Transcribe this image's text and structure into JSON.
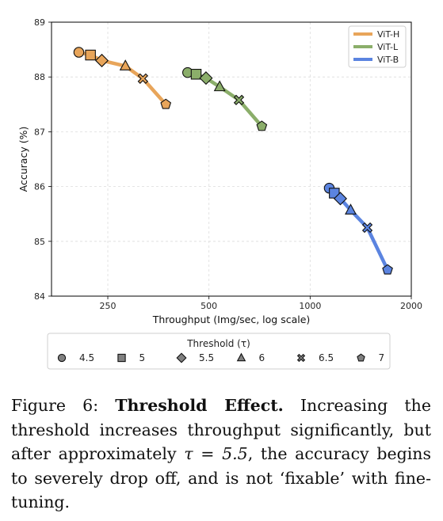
{
  "chart_data": {
    "type": "scatter",
    "xlabel": "Throughput (Img/sec, log scale)",
    "ylabel": "Accuracy (%)",
    "xscale": "log",
    "xlim": [
      170,
      2000
    ],
    "ylim": [
      84,
      89
    ],
    "xticks": [
      250,
      500,
      1000,
      2000
    ],
    "yticks": [
      84,
      85,
      86,
      87,
      88,
      89
    ],
    "grid": true,
    "legend_position": "top-right",
    "series": [
      {
        "name": "ViT-H",
        "color": "#E8A55A",
        "x": [
          205,
          222,
          240,
          282,
          318,
          372
        ],
        "y": [
          88.45,
          88.4,
          88.3,
          88.2,
          87.97,
          87.5
        ]
      },
      {
        "name": "ViT-L",
        "color": "#8BAE6A",
        "x": [
          432,
          458,
          490,
          538,
          614,
          718
        ],
        "y": [
          88.08,
          88.05,
          87.98,
          87.82,
          87.58,
          87.1
        ]
      },
      {
        "name": "ViT-B",
        "color": "#5B84E0",
        "x": [
          1140,
          1180,
          1230,
          1320,
          1480,
          1700
        ],
        "y": [
          85.97,
          85.88,
          85.78,
          85.57,
          85.25,
          84.48
        ]
      }
    ],
    "threshold_legend": {
      "title": "Threshold (τ)",
      "items": [
        {
          "marker": "circle",
          "label": "4.5"
        },
        {
          "marker": "square",
          "label": "5"
        },
        {
          "marker": "diamond",
          "label": "5.5"
        },
        {
          "marker": "triangle",
          "label": "6"
        },
        {
          "marker": "x",
          "label": "6.5"
        },
        {
          "marker": "pentagon",
          "label": "7"
        }
      ]
    }
  },
  "caption": {
    "prefix": "Figure 6: ",
    "bold": "Threshold Effect.",
    "part1": "  Increasing the threshold increases throughput significantly, but after approximately ",
    "math": "τ = 5.5",
    "part2": ", the accuracy begins to severely drop off, and is not ‘fixable’ with fine-tuning."
  }
}
